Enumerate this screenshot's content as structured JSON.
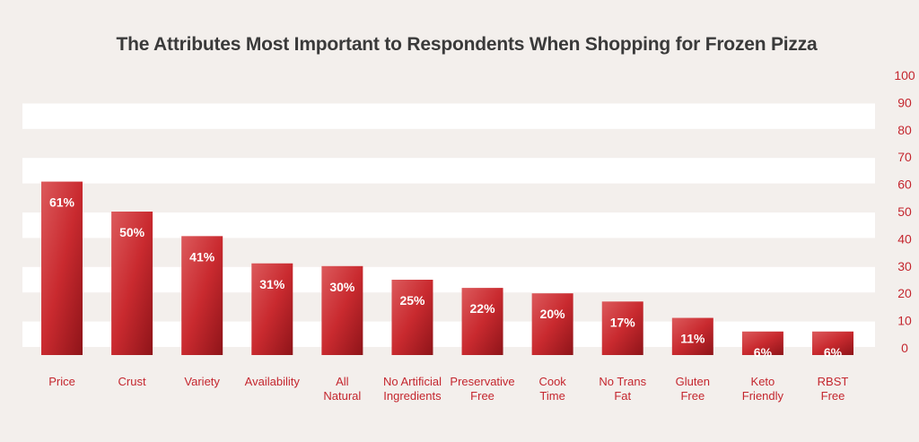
{
  "chart_data": {
    "type": "bar",
    "title": "The Attributes Most Important to Respondents When Shopping for Frozen Pizza",
    "categories": [
      [
        "Price"
      ],
      [
        "Crust"
      ],
      [
        "Variety"
      ],
      [
        "Availability"
      ],
      [
        "All",
        "Natural"
      ],
      [
        "No Artificial",
        "Ingredients"
      ],
      [
        "Preservative",
        "Free"
      ],
      [
        "Cook",
        "Time"
      ],
      [
        "No Trans",
        "Fat"
      ],
      [
        "Gluten",
        "Free"
      ],
      [
        "Keto",
        "Friendly"
      ],
      [
        "RBST",
        "Free"
      ]
    ],
    "values": [
      61,
      50,
      41,
      31,
      30,
      25,
      22,
      20,
      17,
      11,
      6,
      6
    ],
    "value_labels": [
      "61%",
      "50%",
      "41%",
      "31%",
      "30%",
      "25%",
      "22%",
      "20%",
      "17%",
      "11%",
      "6%",
      "6%"
    ],
    "y_ticks": [
      "0",
      "10",
      "20",
      "30",
      "40",
      "50",
      "60",
      "70",
      "80",
      "90",
      "100"
    ],
    "ylim": [
      0,
      100
    ],
    "y_axis_position": "right",
    "grid": "alternating horizontal bands",
    "colors": {
      "bar_light": "#dc5a5c",
      "bar_mid": "#c92a2f",
      "bar_dark": "#8e1419",
      "band": "#ffffff",
      "background": "#f3efec",
      "axis_text": "#c4262e",
      "title_text": "#3a3a3a"
    }
  }
}
